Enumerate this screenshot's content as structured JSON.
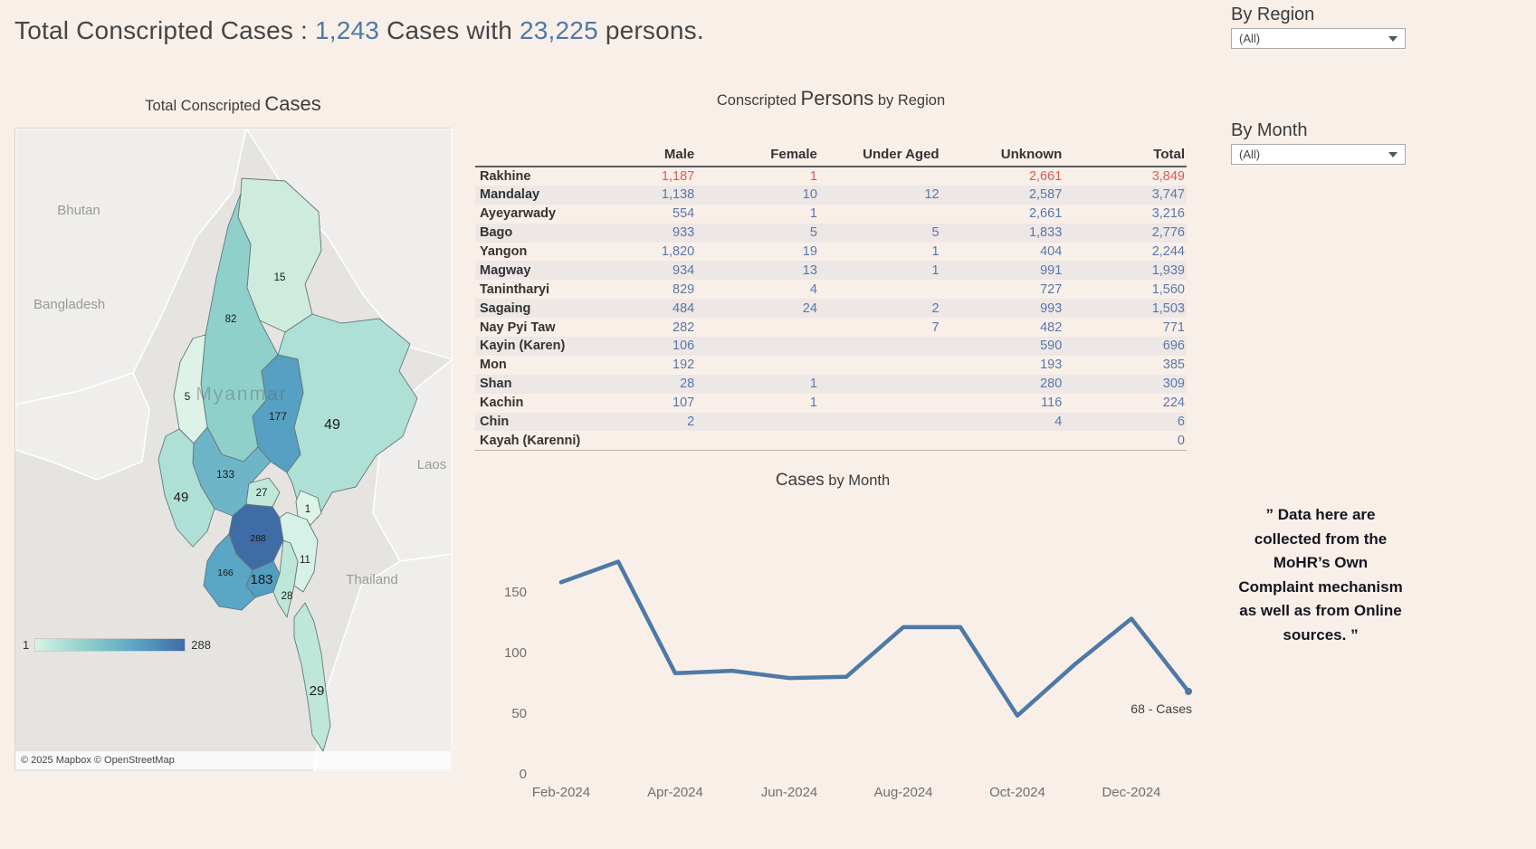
{
  "page": {
    "background": "#f9efe9",
    "accent_blue": "#4e79a7",
    "number_blue": "#5878a8",
    "number_red": "#dc5a56"
  },
  "header": {
    "prefix": "Total Conscripted Cases : ",
    "cases_count": "1,243",
    "middle": " Cases with ",
    "persons_count": "23,225",
    "suffix": " persons."
  },
  "filters": {
    "region": {
      "label": "By Region",
      "value": "(All)"
    },
    "month": {
      "label": "By Month",
      "value": "(All)"
    }
  },
  "map": {
    "title": {
      "prefix": "Total Conscripted ",
      "emph": "Cases"
    },
    "country_labels": {
      "bhutan": "Bhutan",
      "bangladesh": "Bangladesh",
      "myanmar": "Myanmar",
      "laos": "Laos",
      "thailand": "Thailand"
    },
    "regions": [
      {
        "name": "Kachin",
        "value": 15,
        "color": "#cdecdd"
      },
      {
        "name": "Sagaing",
        "value": 82,
        "color": "#8fd0ca"
      },
      {
        "name": "Chin",
        "value": 5,
        "color": "#ddf3e8"
      },
      {
        "name": "Shan",
        "value": 49,
        "color": "#aee0d6"
      },
      {
        "name": "Mandalay",
        "value": 177,
        "color": "#55a0c3"
      },
      {
        "name": "Magway",
        "value": 133,
        "color": "#6fb5c8"
      },
      {
        "name": "Nay Pyi Taw",
        "value": 27,
        "color": "#c0e8da"
      },
      {
        "name": "Kayah",
        "value": 1,
        "color": "#def4e9"
      },
      {
        "name": "Rakhine",
        "value": 49,
        "color": "#aee0d6"
      },
      {
        "name": "Bago",
        "value": 288,
        "color": "#3e6ca5"
      },
      {
        "name": "Yangon",
        "value": 183,
        "color": "#529dc1"
      },
      {
        "name": "Ayeyarwady",
        "value": 166,
        "color": "#5aa6c5"
      },
      {
        "name": "Mon",
        "value": 28,
        "color": "#bfe7d9"
      },
      {
        "name": "Kayin",
        "value": 11,
        "color": "#d6f1e5"
      },
      {
        "name": "Tanintharyi",
        "value": 29,
        "color": "#bee7d9"
      }
    ],
    "legend": {
      "min": "1",
      "max": "288",
      "gradient": [
        "#d9f2e6",
        "#8fd0ca",
        "#5aa6c5",
        "#3e6ca5"
      ]
    },
    "attribution": "© 2025 Mapbox  © OpenStreetMap"
  },
  "table": {
    "title": {
      "prefix": "Conscripted ",
      "emph": "Persons",
      "suffix": " by Region"
    },
    "columns": [
      "Male",
      "Female",
      "Under Aged",
      "Unknown",
      "Total"
    ],
    "rows": [
      {
        "region": "Rakhine",
        "male": "1,187",
        "female": "1",
        "under_aged": "",
        "unknown": "2,661",
        "total": "3,849",
        "highlight": true
      },
      {
        "region": "Mandalay",
        "male": "1,138",
        "female": "10",
        "under_aged": "12",
        "unknown": "2,587",
        "total": "3,747"
      },
      {
        "region": "Ayeyarwady",
        "male": "554",
        "female": "1",
        "under_aged": "",
        "unknown": "2,661",
        "total": "3,216"
      },
      {
        "region": "Bago",
        "male": "933",
        "female": "5",
        "under_aged": "5",
        "unknown": "1,833",
        "total": "2,776"
      },
      {
        "region": "Yangon",
        "male": "1,820",
        "female": "19",
        "under_aged": "1",
        "unknown": "404",
        "total": "2,244"
      },
      {
        "region": "Magway",
        "male": "934",
        "female": "13",
        "under_aged": "1",
        "unknown": "991",
        "total": "1,939"
      },
      {
        "region": "Tanintharyi",
        "male": "829",
        "female": "4",
        "under_aged": "",
        "unknown": "727",
        "total": "1,560"
      },
      {
        "region": "Sagaing",
        "male": "484",
        "female": "24",
        "under_aged": "2",
        "unknown": "993",
        "total": "1,503"
      },
      {
        "region": "Nay Pyi Taw",
        "male": "282",
        "female": "",
        "under_aged": "7",
        "unknown": "482",
        "total": "771"
      },
      {
        "region": "Kayin (Karen)",
        "male": "106",
        "female": "",
        "under_aged": "",
        "unknown": "590",
        "total": "696"
      },
      {
        "region": "Mon",
        "male": "192",
        "female": "",
        "under_aged": "",
        "unknown": "193",
        "total": "385"
      },
      {
        "region": "Shan",
        "male": "28",
        "female": "1",
        "under_aged": "",
        "unknown": "280",
        "total": "309"
      },
      {
        "region": "Kachin",
        "male": "107",
        "female": "1",
        "under_aged": "",
        "unknown": "116",
        "total": "224"
      },
      {
        "region": "Chin",
        "male": "2",
        "female": "",
        "under_aged": "",
        "unknown": "4",
        "total": "6"
      },
      {
        "region": "Kayah (Karenni)",
        "male": "",
        "female": "",
        "under_aged": "",
        "unknown": "",
        "total": "0"
      }
    ]
  },
  "chart_data": [
    {
      "type": "line",
      "title": "Cases by Month",
      "title_emph": "Cases",
      "title_rest": " by Month",
      "x": [
        "Feb-2024",
        "Mar-2024",
        "Apr-2024",
        "May-2024",
        "Jun-2024",
        "Jul-2024",
        "Aug-2024",
        "Sep-2024",
        "Oct-2024",
        "Nov-2024",
        "Dec-2024",
        "Jan-2025"
      ],
      "values": [
        158,
        175,
        83,
        85,
        79,
        80,
        121,
        121,
        48,
        90,
        128,
        68
      ],
      "x_tick_labels": [
        "Feb-2024",
        "Apr-2024",
        "Jun-2024",
        "Aug-2024",
        "Oct-2024",
        "Dec-2024"
      ],
      "y_ticks": [
        0,
        50,
        100,
        150
      ],
      "ylim": [
        0,
        185
      ],
      "grid": false,
      "legend_position": "none",
      "line_color": "#4e79a7",
      "annotation": "68 - Cases"
    },
    {
      "type": "heatmap",
      "title": "Total Conscripted Cases",
      "note_type": "choropleth map of Myanmar states",
      "categories": [
        "Kachin",
        "Sagaing",
        "Chin",
        "Shan",
        "Mandalay",
        "Magway",
        "Nay Pyi Taw",
        "Kayah",
        "Rakhine",
        "Bago",
        "Yangon",
        "Ayeyarwady",
        "Mon",
        "Kayin",
        "Tanintharyi"
      ],
      "values": [
        15,
        82,
        5,
        49,
        177,
        133,
        27,
        1,
        49,
        288,
        183,
        166,
        28,
        11,
        29
      ],
      "color_range": [
        "#d9f2e6",
        "#3e6ca5"
      ],
      "value_range": [
        1,
        288
      ]
    }
  ],
  "note": {
    "text": "” Data here are collected from the MoHR’s Own Complaint mechanism as well as from Online sources. ”"
  }
}
